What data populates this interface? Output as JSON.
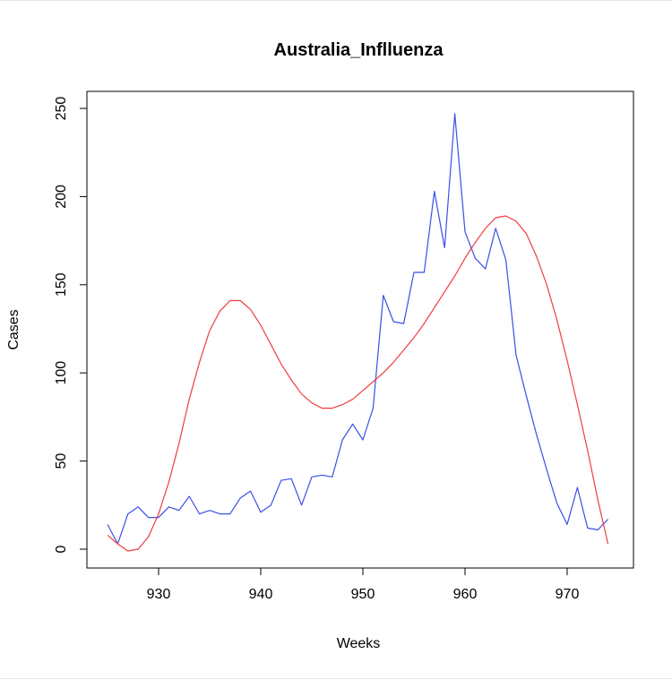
{
  "chart_data": {
    "type": "line",
    "title": "Australia_Inflluenza",
    "xlabel": "Weeks",
    "ylabel": "Cases",
    "xlim": [
      925,
      974
    ],
    "ylim": [
      0,
      250
    ],
    "x_ticks": [
      930,
      940,
      950,
      960,
      970
    ],
    "y_ticks": [
      0,
      50,
      100,
      150,
      200,
      250
    ],
    "grid": false,
    "legend": "none",
    "series": [
      {
        "color": "#3b4fe6",
        "x": [
          925,
          926,
          927,
          928,
          929,
          930,
          931,
          932,
          933,
          934,
          935,
          936,
          937,
          938,
          939,
          940,
          941,
          942,
          943,
          944,
          945,
          946,
          947,
          948,
          949,
          950,
          951,
          952,
          953,
          954,
          955,
          956,
          957,
          958,
          959,
          960,
          961,
          962,
          963,
          964,
          965,
          966,
          967,
          968,
          969,
          970,
          971,
          972,
          973,
          974
        ],
        "values": [
          14,
          3,
          20,
          24,
          18,
          18,
          24,
          22,
          30,
          20,
          22,
          20,
          20,
          29,
          33,
          21,
          25,
          39,
          40,
          25,
          41,
          42,
          41,
          62,
          71,
          62,
          80,
          144,
          129,
          128,
          157,
          157,
          203,
          171,
          247,
          180,
          165,
          159,
          182,
          164,
          110,
          87,
          65,
          45,
          26,
          14,
          35,
          12,
          11,
          17
        ]
      },
      {
        "color": "#f03c3c",
        "x": [
          925,
          926,
          927,
          928,
          929,
          930,
          931,
          932,
          933,
          934,
          935,
          936,
          937,
          938,
          939,
          940,
          941,
          942,
          943,
          944,
          945,
          946,
          947,
          948,
          949,
          950,
          951,
          952,
          953,
          954,
          955,
          956,
          957,
          958,
          959,
          960,
          961,
          962,
          963,
          964,
          965,
          966,
          967,
          968,
          969,
          970,
          971,
          972,
          973,
          974
        ],
        "values": [
          8,
          3,
          -1,
          0,
          7,
          20,
          38,
          60,
          85,
          106,
          124,
          135,
          141,
          141,
          136,
          127,
          116,
          105,
          96,
          88,
          83,
          80,
          80,
          82,
          85,
          90,
          95,
          100,
          106,
          113,
          120,
          128,
          137,
          146,
          155,
          165,
          174,
          182,
          188,
          189,
          186,
          179,
          166,
          150,
          130,
          107,
          82,
          56,
          28,
          3
        ]
      }
    ]
  }
}
